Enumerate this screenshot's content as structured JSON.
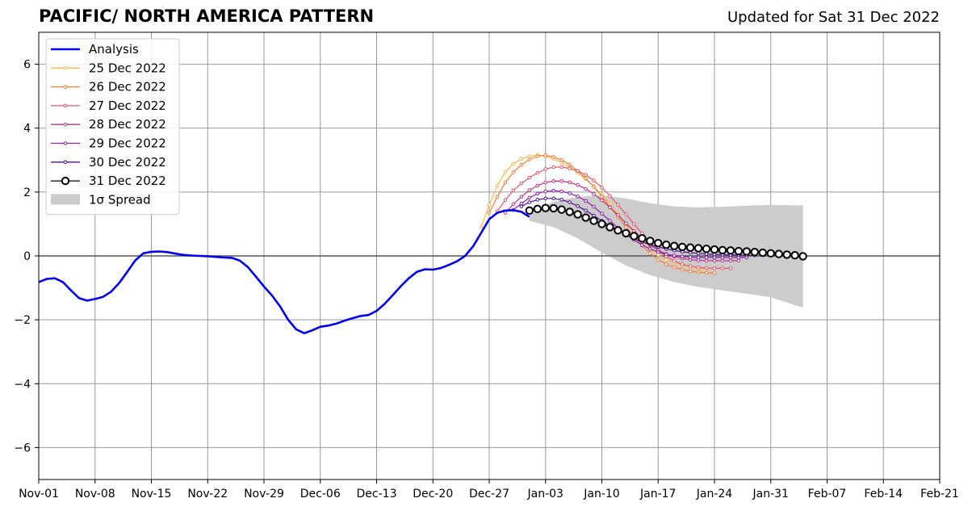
{
  "header": {
    "title": "PACIFIC/ NORTH AMERICA PATTERN",
    "updated": "Updated for Sat 31 Dec 2022"
  },
  "chart_data": {
    "type": "line",
    "x_unit": "date",
    "xlim": [
      "2022-11-01",
      "2023-02-21"
    ],
    "ylim": [
      -7,
      7
    ],
    "x_ticks": [
      {
        "date": "2022-11-01",
        "label": "Nov-01"
      },
      {
        "date": "2022-11-08",
        "label": "Nov-08"
      },
      {
        "date": "2022-11-15",
        "label": "Nov-15"
      },
      {
        "date": "2022-11-22",
        "label": "Nov-22"
      },
      {
        "date": "2022-11-29",
        "label": "Nov-29"
      },
      {
        "date": "2022-12-06",
        "label": "Dec-06"
      },
      {
        "date": "2022-12-13",
        "label": "Dec-13"
      },
      {
        "date": "2022-12-20",
        "label": "Dec-20"
      },
      {
        "date": "2022-12-27",
        "label": "Dec-27"
      },
      {
        "date": "2023-01-03",
        "label": "Jan-03"
      },
      {
        "date": "2023-01-10",
        "label": "Jan-10"
      },
      {
        "date": "2023-01-17",
        "label": "Jan-17"
      },
      {
        "date": "2023-01-24",
        "label": "Jan-24"
      },
      {
        "date": "2023-01-31",
        "label": "Jan-31"
      },
      {
        "date": "2023-02-07",
        "label": "Feb-07"
      },
      {
        "date": "2023-02-14",
        "label": "Feb-14"
      },
      {
        "date": "2023-02-21",
        "label": "Feb-21"
      }
    ],
    "y_ticks": [
      {
        "value": 6,
        "label": "6"
      },
      {
        "value": 4,
        "label": "4"
      },
      {
        "value": 2,
        "label": "2"
      },
      {
        "value": 0,
        "label": "0"
      },
      {
        "value": -2,
        "label": "−2"
      },
      {
        "value": -4,
        "label": "−4"
      },
      {
        "value": -6,
        "label": "−6"
      }
    ],
    "grid": true,
    "zero_line": true,
    "legend": "upper-left",
    "analysis": {
      "name": "Analysis",
      "color": "#0000ee",
      "start": "2022-11-01",
      "values": [
        -0.82,
        -0.72,
        -0.7,
        -0.82,
        -1.08,
        -1.32,
        -1.4,
        -1.35,
        -1.28,
        -1.12,
        -0.85,
        -0.5,
        -0.14,
        0.08,
        0.13,
        0.14,
        0.12,
        0.07,
        0.03,
        0.01,
        0.0,
        -0.01,
        -0.03,
        -0.05,
        -0.06,
        -0.15,
        -0.35,
        -0.65,
        -0.96,
        -1.24,
        -1.58,
        -2.0,
        -2.3,
        -2.42,
        -2.33,
        -2.22,
        -2.18,
        -2.12,
        -2.03,
        -1.95,
        -1.88,
        -1.85,
        -1.72,
        -1.5,
        -1.23,
        -0.95,
        -0.7,
        -0.5,
        -0.42,
        -0.43,
        -0.38,
        -0.28,
        -0.17,
        0.0,
        0.3,
        0.72,
        1.15,
        1.35,
        1.42,
        1.43,
        1.38,
        1.22
      ]
    },
    "forecasts": [
      {
        "name": "25 Dec 2022",
        "color": "#fdb94a",
        "start": "2022-12-26",
        "values": [
          0.9,
          1.6,
          2.2,
          2.62,
          2.88,
          3.04,
          3.12,
          3.16,
          3.12,
          3.04,
          2.92,
          2.78,
          2.6,
          2.4,
          2.18,
          1.9,
          1.62,
          1.32,
          1.02,
          0.72,
          0.46,
          0.22,
          0.04,
          -0.12,
          -0.22,
          -0.3,
          -0.36,
          -0.4,
          -0.42
        ]
      },
      {
        "name": "26 Dec 2022",
        "color": "#f57d3c",
        "start": "2022-12-27",
        "values": [
          1.35,
          1.85,
          2.3,
          2.62,
          2.85,
          3.02,
          3.12,
          3.15,
          3.1,
          3.0,
          2.86,
          2.66,
          2.43,
          2.16,
          1.86,
          1.54,
          1.22,
          0.9,
          0.6,
          0.32,
          0.08,
          -0.12,
          -0.26,
          -0.36,
          -0.43,
          -0.48,
          -0.51,
          -0.53,
          -0.54
        ]
      },
      {
        "name": "27 Dec 2022",
        "color": "#de5a6e",
        "start": "2022-12-28",
        "values": [
          1.4,
          1.75,
          2.05,
          2.27,
          2.45,
          2.6,
          2.72,
          2.78,
          2.78,
          2.74,
          2.66,
          2.54,
          2.36,
          2.14,
          1.88,
          1.6,
          1.3,
          1.0,
          0.7,
          0.42,
          0.18,
          -0.02,
          -0.16,
          -0.26,
          -0.32,
          -0.36,
          -0.38,
          -0.39,
          -0.39,
          -0.39
        ]
      },
      {
        "name": "28 Dec 2022",
        "color": "#b7348a",
        "start": "2022-12-29",
        "values": [
          1.35,
          1.62,
          1.85,
          2.06,
          2.2,
          2.3,
          2.34,
          2.34,
          2.3,
          2.22,
          2.1,
          1.94,
          1.74,
          1.52,
          1.28,
          1.02,
          0.78,
          0.54,
          0.34,
          0.18,
          0.06,
          -0.02,
          -0.08,
          -0.12,
          -0.14,
          -0.15,
          -0.15,
          -0.15,
          -0.15,
          -0.15
        ]
      },
      {
        "name": "29 Dec 2022",
        "color": "#8e1ea8",
        "start": "2022-12-30",
        "values": [
          1.44,
          1.64,
          1.82,
          1.95,
          2.02,
          2.04,
          2.02,
          1.96,
          1.86,
          1.72,
          1.54,
          1.32,
          1.1,
          0.88,
          0.68,
          0.5,
          0.34,
          0.22,
          0.12,
          0.05,
          0.01,
          -0.02,
          -0.04,
          -0.05,
          -0.05,
          -0.05,
          -0.05,
          -0.05,
          -0.05,
          -0.05
        ]
      },
      {
        "name": "30 Dec 2022",
        "color": "#4c0c8c",
        "start": "2022-12-31",
        "values": [
          1.55,
          1.68,
          1.76,
          1.8,
          1.8,
          1.76,
          1.68,
          1.56,
          1.42,
          1.26,
          1.1,
          0.94,
          0.8,
          0.66,
          0.54,
          0.44,
          0.35,
          0.28,
          0.22,
          0.17,
          0.13,
          0.1,
          0.08,
          0.06,
          0.05,
          0.04,
          0.03,
          0.03,
          0.02,
          0.02
        ]
      },
      {
        "name": "31 Dec 2022",
        "color": "#000000",
        "start": "2023-01-01",
        "values": [
          1.42,
          1.47,
          1.5,
          1.49,
          1.45,
          1.38,
          1.3,
          1.2,
          1.1,
          1.0,
          0.9,
          0.8,
          0.71,
          0.62,
          0.55,
          0.47,
          0.4,
          0.35,
          0.31,
          0.28,
          0.26,
          0.24,
          0.22,
          0.2,
          0.18,
          0.17,
          0.15,
          0.14,
          0.12,
          0.1,
          0.08,
          0.06,
          0.04,
          0.02,
          -0.01
        ]
      }
    ],
    "spread": {
      "name": "1σ Spread",
      "color": "#cccccc",
      "dates": [
        "2023-01-01",
        "2023-01-04",
        "2023-01-07",
        "2023-01-10",
        "2023-01-13",
        "2023-01-16",
        "2023-01-19",
        "2023-01-22",
        "2023-01-25",
        "2023-01-28",
        "2023-01-31",
        "2023-02-04"
      ],
      "upper": [
        1.3,
        1.7,
        1.85,
        1.9,
        1.8,
        1.65,
        1.55,
        1.52,
        1.54,
        1.57,
        1.6,
        1.58
      ],
      "lower": [
        1.1,
        0.9,
        0.55,
        0.1,
        -0.3,
        -0.6,
        -0.82,
        -0.97,
        -1.08,
        -1.18,
        -1.3,
        -1.62
      ]
    }
  }
}
